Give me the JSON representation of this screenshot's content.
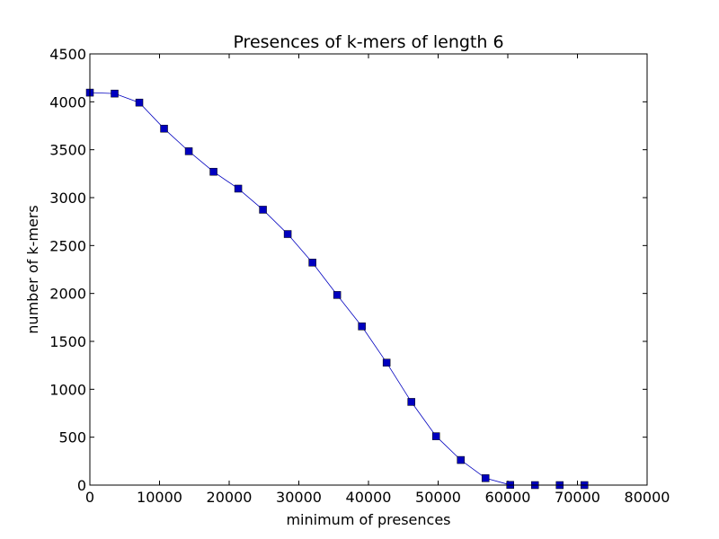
{
  "chart_data": {
    "type": "line",
    "title": "Presences of k-mers of length 6",
    "xlabel": "minimum of presences",
    "ylabel": "number of k-mers",
    "xlim": [
      0,
      80000
    ],
    "ylim": [
      0,
      4500
    ],
    "x_ticks": [
      0,
      10000,
      20000,
      30000,
      40000,
      50000,
      60000,
      70000,
      80000
    ],
    "y_ticks": [
      0,
      500,
      1000,
      1500,
      2000,
      2500,
      3000,
      3500,
      4000,
      4500
    ],
    "grid": false,
    "legend": false,
    "series": [
      {
        "color": "#0000bf",
        "marker": "square",
        "x": [
          0,
          3550,
          7100,
          10650,
          14200,
          17750,
          21300,
          24850,
          28400,
          31950,
          35500,
          39050,
          42600,
          46150,
          49700,
          53250,
          56800,
          60350,
          63900,
          67450,
          71000
        ],
        "y": [
          4096,
          4086,
          3992,
          3720,
          3484,
          3270,
          3094,
          2874,
          2620,
          2322,
          1984,
          1656,
          1278,
          868,
          510,
          262,
          72,
          2,
          0,
          0,
          0
        ]
      }
    ]
  }
}
